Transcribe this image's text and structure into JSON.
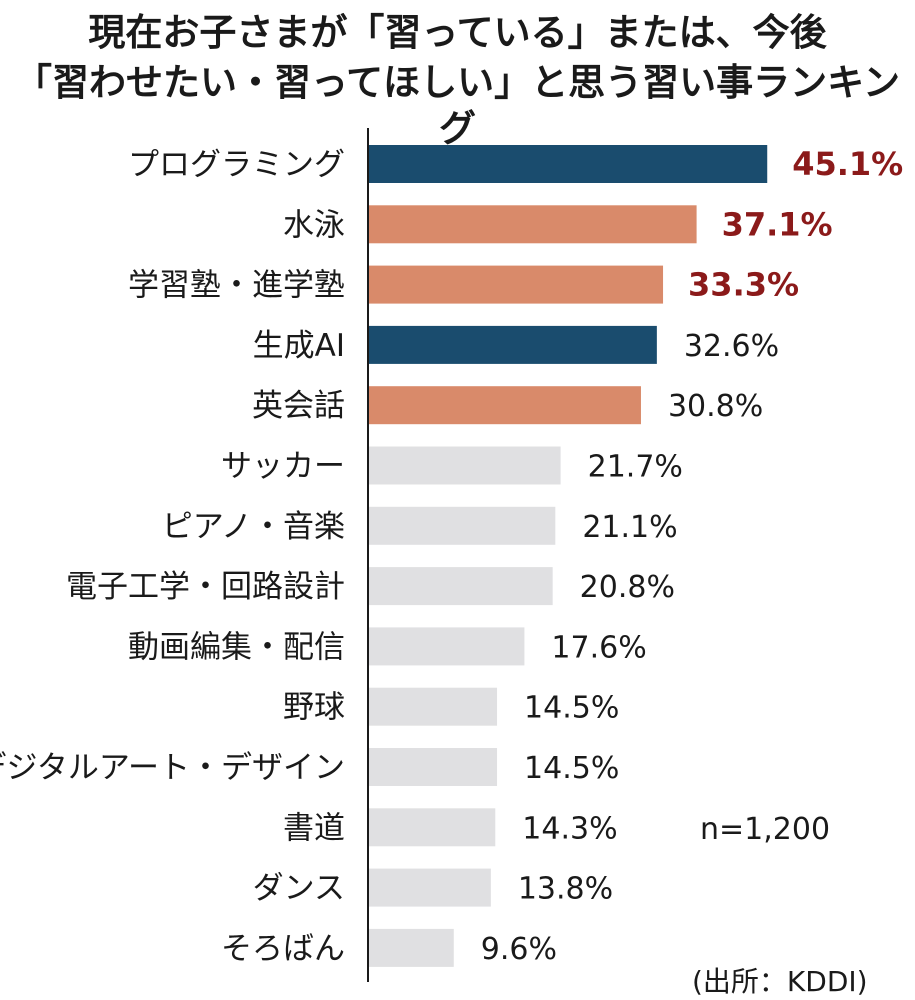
{
  "title_lines": [
    "現在お子さまが「習っている」または、今後",
    "「習わせたい・習ってほしい」と思う習い事ランキング"
  ],
  "sample_size": "n=1,200",
  "source": "(出所：KDDI)",
  "colors": {
    "highlight_blue": "#1a4c6e",
    "highlight_orange": "#d98a6a",
    "other_gray": "#e0e0e2",
    "top_value_text": "#8b1a1a",
    "value_text": "#1a1a1a",
    "axis": "#1a1a1a"
  },
  "chart_data": {
    "type": "bar",
    "orientation": "horizontal",
    "categories": [
      "プログラミング",
      "水泳",
      "学習塾・進学塾",
      "生成AI",
      "英会話",
      "サッカー",
      "ピアノ・音楽",
      "電子工学・回路設計",
      "動画編集・配信",
      "野球",
      "デジタルアート・デザイン",
      "書道",
      "ダンス",
      "そろばん"
    ],
    "values": [
      45.1,
      37.1,
      33.3,
      32.6,
      30.8,
      21.7,
      21.1,
      20.8,
      17.6,
      14.5,
      14.5,
      14.3,
      13.8,
      9.6
    ],
    "value_labels": [
      "45.1%",
      "37.1%",
      "33.3%",
      "32.6%",
      "30.8%",
      "21.7%",
      "21.1%",
      "20.8%",
      "17.6%",
      "14.5%",
      "14.5%",
      "14.3%",
      "13.8%",
      "9.6%"
    ],
    "bar_colors": [
      "blue",
      "orange",
      "orange",
      "blue",
      "orange",
      "gray",
      "gray",
      "gray",
      "gray",
      "gray",
      "gray",
      "gray",
      "gray",
      "gray"
    ],
    "label_emphasis": [
      true,
      true,
      true,
      false,
      false,
      false,
      false,
      false,
      false,
      false,
      false,
      false,
      false,
      false
    ],
    "xlim": [
      0,
      50
    ],
    "grid": false,
    "legend": "none"
  }
}
